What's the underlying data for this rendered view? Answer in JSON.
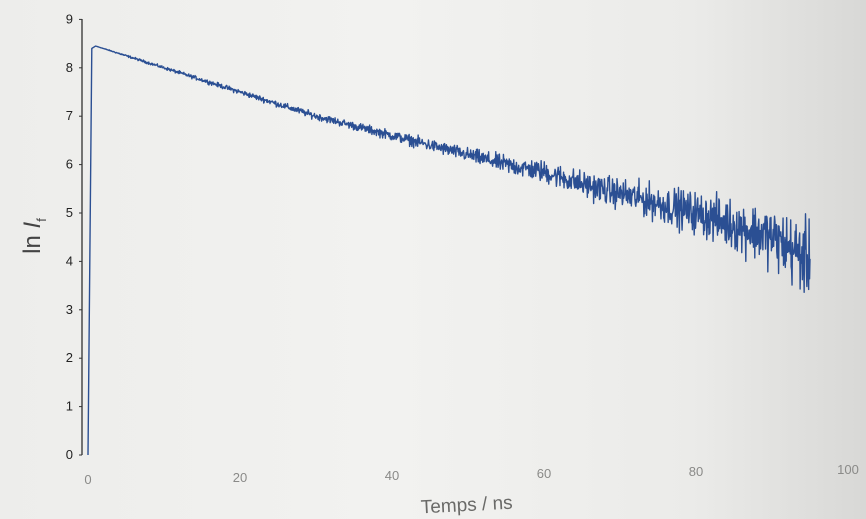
{
  "chart_data": {
    "type": "line",
    "title": "",
    "xlabel": "Temps / ns",
    "ylabel": {
      "prefix": "ln ",
      "symbol": "I",
      "subscript": "f"
    },
    "xlim": [
      0,
      100
    ],
    "ylim": [
      0,
      9
    ],
    "x_ticks": [
      "0",
      "20",
      "40",
      "60",
      "80",
      "100"
    ],
    "y_ticks": [
      "0",
      "1",
      "2",
      "3",
      "4",
      "5",
      "6",
      "7",
      "8",
      "9"
    ],
    "grid": false,
    "legend": "none",
    "series": [
      {
        "color": "#2b4f93",
        "x": [
          0,
          0.5,
          1,
          5,
          10,
          15,
          20,
          25,
          30,
          35,
          40,
          45,
          50,
          55,
          60,
          65,
          70,
          75,
          80,
          85,
          90,
          95
        ],
        "y": [
          0.0,
          8.4,
          8.45,
          8.25,
          8.0,
          7.75,
          7.5,
          7.25,
          7.0,
          6.8,
          6.6,
          6.4,
          6.2,
          6.0,
          5.85,
          5.6,
          5.4,
          5.2,
          5.0,
          4.75,
          4.5,
          4.0
        ],
        "noise": [
          0,
          0,
          0,
          0.01,
          0.015,
          0.02,
          0.025,
          0.03,
          0.035,
          0.04,
          0.05,
          0.06,
          0.07,
          0.09,
          0.11,
          0.13,
          0.15,
          0.18,
          0.21,
          0.25,
          0.3,
          0.38
        ]
      }
    ]
  }
}
